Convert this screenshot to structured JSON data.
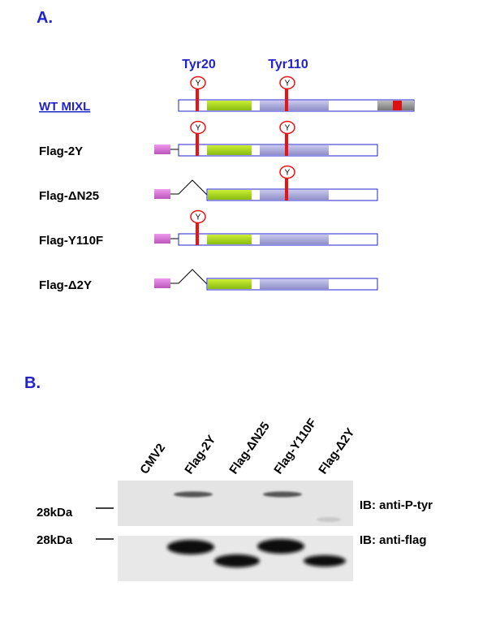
{
  "panel_a": {
    "label": "A.",
    "sites": [
      "Tyr20",
      "Tyr110"
    ],
    "site_symbol": "Y",
    "constructs": [
      "WT MIXL",
      "Flag-2Y",
      "Flag-ΔN25",
      "Flag-Y110F",
      "Flag-Δ2Y"
    ]
  },
  "panel_b": {
    "label": "B.",
    "lanes": [
      "CMV2",
      "Flag-2Y",
      "Flag-ΔN25",
      "Flag-Y110F",
      "Flag-Δ2Y"
    ],
    "blots": [
      {
        "marker": "28kDa",
        "antibody": "IB: anti-P-tyr"
      },
      {
        "marker": "28kDa",
        "antibody": "IB: anti-flag"
      }
    ]
  }
}
